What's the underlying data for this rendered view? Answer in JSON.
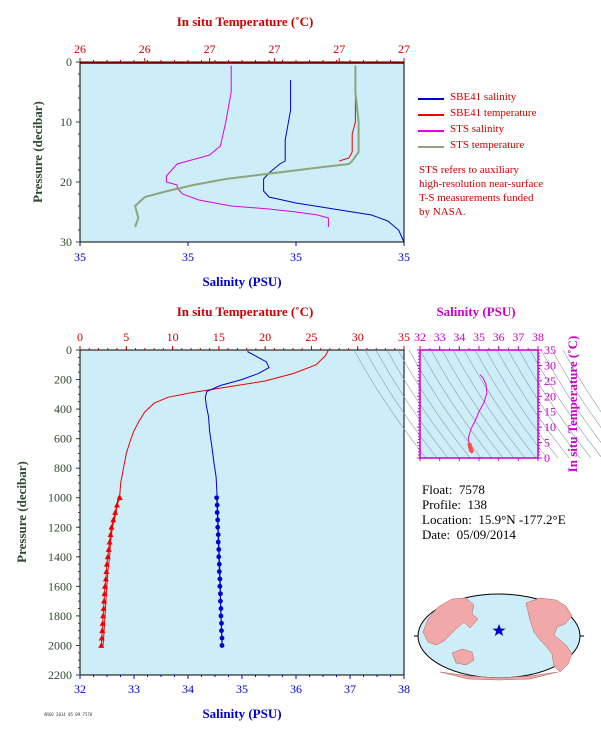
{
  "figure": {
    "float_label": "Float:",
    "float_id": "7578",
    "profile_label": "Profile:",
    "profile_num": "138",
    "location_label": "Location:",
    "location_value": "15.9°N  -177.2°E",
    "date_label": "Date:",
    "date_value": "05/09/2014",
    "note_lines": [
      "STS refers to auxiliary",
      "high-resolution near-surface",
      "T-S measurements funded",
      "by NASA."
    ],
    "footer_code": "ARGO 2014 05 09 7578",
    "colors": {
      "panel_bg": "#cdeef8",
      "axis_red": "#cc0000",
      "axis_purple": "#cc00cc",
      "axis_green": "#2e4a2e",
      "salinity_blue": "#0000cc",
      "temperature_red": "#ee0000",
      "sts_salinity": "#e000e0",
      "sts_temperature": "#8fa47a"
    }
  },
  "chart_data": [
    {
      "type": "line",
      "panel": "near-surface",
      "top_axis_label": "In situ Temperature (˚C)",
      "top_ticks": [
        "26",
        "26",
        "27",
        "27",
        "27",
        "27"
      ],
      "bottom_axis_label": "Salinity (PSU)",
      "bottom_ticks": [
        "35",
        "35",
        "35",
        "35"
      ],
      "ylabel": "Pressure (decibar)",
      "ylim": [
        30,
        0
      ],
      "yticks": [
        0,
        10,
        20,
        30
      ],
      "xlim_temperature": [
        26.0,
        27.0
      ],
      "xlim_salinity": [
        34.7,
        35.3
      ],
      "legend": [
        "SBE41 salinity",
        "SBE41 temperature",
        "STS salinity",
        "STS temperature"
      ],
      "series": [
        {
          "name": "SBE41 salinity",
          "color": "#0000cc",
          "axis": "salinity",
          "x": [
            35.09,
            35.09,
            35.08,
            35.08,
            35.07,
            35.05,
            35.04,
            35.04,
            35.05,
            35.1,
            35.17,
            35.24,
            35.27,
            35.29,
            35.3
          ],
          "y": [
            3,
            8,
            13,
            16.5,
            17,
            18.5,
            19.5,
            21.5,
            22.5,
            23.5,
            24.5,
            25.5,
            26.5,
            28,
            30
          ]
        },
        {
          "name": "SBE41 temperature",
          "color": "#ee0000",
          "axis": "temperature",
          "x": [
            26.85,
            26.85,
            26.85,
            26.84,
            26.84,
            26.83,
            26.8
          ],
          "y": [
            0.6,
            5,
            10,
            12,
            15,
            16,
            16.5
          ]
        },
        {
          "name": "STS salinity",
          "color": "#e000e0",
          "axis": "salinity",
          "x": [
            34.98,
            34.98,
            34.97,
            34.96,
            34.94,
            34.92,
            34.9,
            34.88,
            34.87,
            34.86,
            34.86,
            34.88,
            34.88,
            34.89,
            34.92,
            34.98,
            35.05,
            35.1,
            35.14,
            35.16,
            35.16
          ],
          "y": [
            0.6,
            5,
            10,
            14,
            15.5,
            16,
            16.5,
            17,
            18,
            19,
            20,
            20.5,
            21,
            22,
            23,
            24,
            24.5,
            25,
            25.5,
            26,
            27.5
          ]
        },
        {
          "name": "STS temperature",
          "color": "#8fa47a",
          "axis": "temperature",
          "x": [
            26.85,
            26.85,
            26.86,
            26.86,
            26.84,
            26.83,
            26.75,
            26.6,
            26.45,
            26.35,
            26.27,
            26.2,
            26.17,
            26.18,
            26.17
          ],
          "y": [
            0.6,
            5,
            10,
            15,
            16.5,
            17,
            17.5,
            18.5,
            19.5,
            20.5,
            21.5,
            22.5,
            24,
            26,
            27.5
          ]
        }
      ]
    },
    {
      "type": "line",
      "panel": "full-profile",
      "top_axis_label": "In situ Temperature (˚C)",
      "xlim_temperature": [
        0,
        35
      ],
      "xticks_temperature": [
        0,
        5,
        10,
        15,
        20,
        25,
        30,
        35
      ],
      "bottom_axis_label": "Salinity (PSU)",
      "xlim_salinity": [
        32,
        38
      ],
      "xticks_salinity": [
        32,
        33,
        34,
        35,
        36,
        37,
        38
      ],
      "ylabel": "Pressure (decibar)",
      "ylim": [
        2200,
        0
      ],
      "yticks": [
        0,
        200,
        400,
        600,
        800,
        1000,
        1200,
        1400,
        1600,
        1800,
        2000,
        2200
      ],
      "series": [
        {
          "name": "temperature",
          "color": "#ee0000",
          "axis": "temperature",
          "x": [
            26.8,
            26.5,
            25.5,
            23.0,
            20.0,
            16.0,
            12.0,
            9.5,
            8.0,
            7.0,
            6.4,
            5.8,
            5.4,
            5.0,
            4.7,
            4.4,
            4.3,
            4.1,
            3.9,
            3.7,
            3.5,
            3.4,
            3.3,
            3.2,
            3.1,
            3.0,
            2.9,
            2.8,
            2.7,
            2.6,
            2.5
          ],
          "y": [
            5,
            40,
            100,
            160,
            210,
            250,
            290,
            320,
            360,
            420,
            480,
            550,
            620,
            700,
            800,
            900,
            980,
            1000,
            1100,
            1150,
            1200,
            1250,
            1300,
            1400,
            1450,
            1500,
            1600,
            1700,
            1800,
            1900,
            2000
          ]
        },
        {
          "name": "salinity",
          "color": "#0000cc",
          "axis": "salinity",
          "x": [
            35.1,
            35.3,
            35.45,
            35.5,
            35.3,
            35.0,
            34.6,
            34.35,
            34.32,
            34.34,
            34.38,
            34.4,
            34.44,
            34.48,
            34.52,
            34.54,
            34.56,
            34.58,
            34.6,
            34.6,
            34.62,
            34.63
          ],
          "y": [
            10,
            50,
            80,
            120,
            160,
            200,
            240,
            280,
            320,
            380,
            450,
            550,
            650,
            760,
            860,
            1000,
            1200,
            1400,
            1600,
            1700,
            1900,
            2000
          ]
        },
        {
          "name": "temperature markers",
          "color": "#ee0000",
          "marker": "triangle",
          "axis": "temperature",
          "x": [
            4.3,
            4.0,
            3.8,
            3.6,
            3.4,
            3.3,
            3.2,
            3.1,
            3.0,
            2.9,
            2.85,
            2.8,
            2.7,
            2.65,
            2.6,
            2.55,
            2.5,
            2.45,
            2.4,
            2.35,
            2.3
          ],
          "y": [
            1000,
            1050,
            1100,
            1150,
            1200,
            1250,
            1300,
            1350,
            1400,
            1450,
            1500,
            1550,
            1600,
            1650,
            1700,
            1750,
            1800,
            1850,
            1900,
            1950,
            2000
          ]
        },
        {
          "name": "salinity markers",
          "color": "#0000cc",
          "marker": "circle",
          "axis": "salinity",
          "x": [
            34.53,
            34.54,
            34.54,
            34.55,
            34.55,
            34.56,
            34.56,
            34.57,
            34.57,
            34.58,
            34.58,
            34.59,
            34.59,
            34.6,
            34.6,
            34.61,
            34.61,
            34.62,
            34.62,
            34.63,
            34.63
          ],
          "y": [
            1000,
            1050,
            1100,
            1150,
            1200,
            1250,
            1300,
            1350,
            1400,
            1450,
            1500,
            1550,
            1600,
            1650,
            1700,
            1750,
            1800,
            1850,
            1900,
            1950,
            2000
          ]
        }
      ]
    },
    {
      "type": "line",
      "panel": "T-S diagram",
      "top_axis_label": "Salinity (PSU)",
      "xlim": [
        32,
        38
      ],
      "xticks": [
        32,
        33,
        34,
        35,
        36,
        37,
        38
      ],
      "right_axis_label": "In situ Temperature (˚C)",
      "ylim": [
        0,
        35
      ],
      "yticks": [
        0,
        5,
        10,
        15,
        20,
        25,
        30,
        35
      ],
      "series": [
        {
          "name": "T-S curve",
          "color": "#e000e0",
          "x": [
            35.05,
            35.2,
            35.35,
            35.4,
            35.25,
            35.0,
            34.8,
            34.6,
            34.5,
            34.45,
            34.5,
            34.55
          ],
          "y": [
            27,
            26,
            24,
            21,
            18,
            15,
            12,
            9.5,
            7.5,
            6,
            5,
            4
          ]
        },
        {
          "name": "T-S deep",
          "color": "#ff4d4d",
          "x": [
            34.52,
            34.55,
            34.58,
            34.6,
            34.62
          ],
          "y": [
            4.3,
            3.6,
            3.0,
            2.6,
            2.3
          ]
        }
      ]
    }
  ]
}
